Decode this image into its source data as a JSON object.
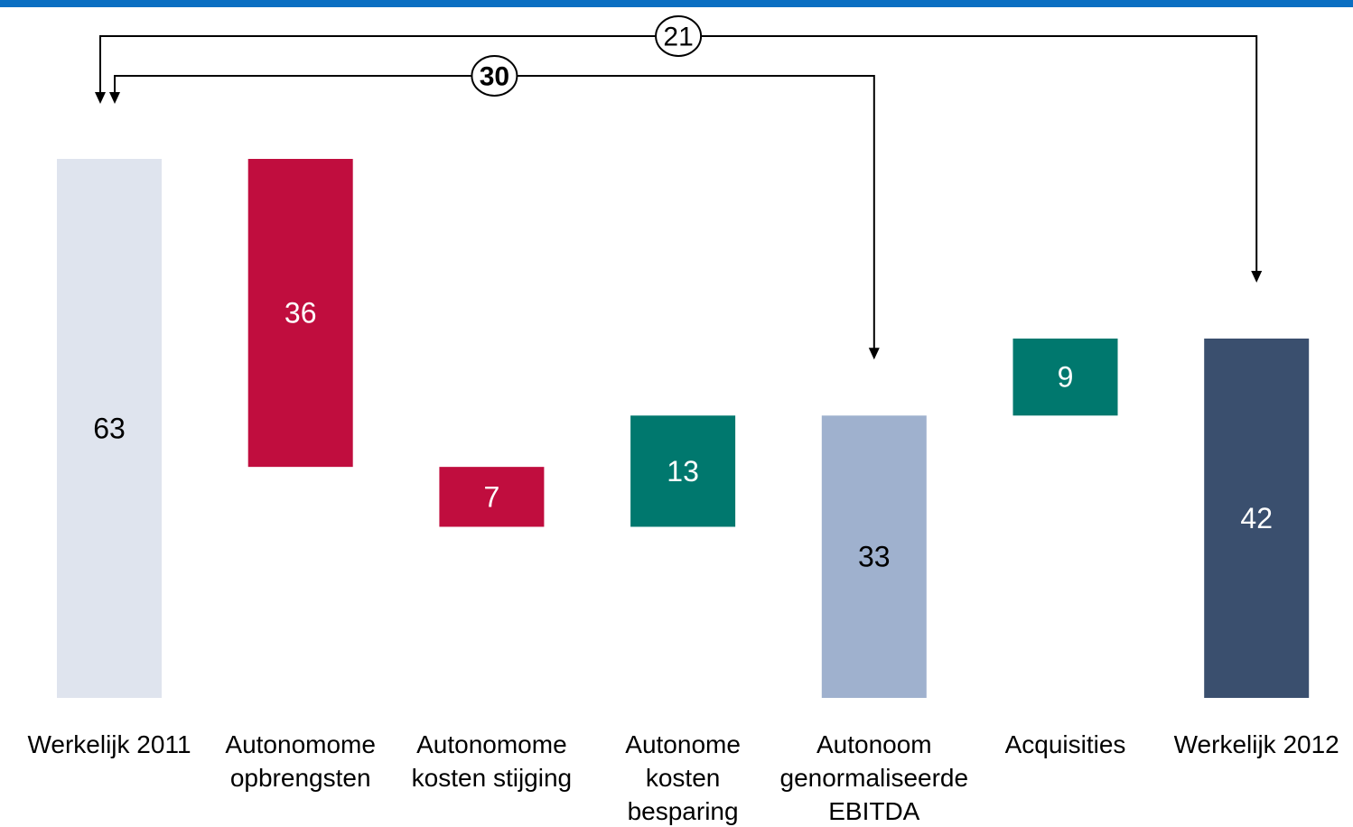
{
  "chart_data": {
    "type": "waterfall",
    "categories": [
      "Werkelijk 2011",
      "Autonomome\nopbrengsten",
      "Autonomome\nkosten stijging",
      "Autonome\nkosten\nbesparing",
      "Autonoom\ngenormaliseerde\nEBITDA",
      "Acquisities",
      "Werkelijk 2012"
    ],
    "values": [
      63,
      36,
      7,
      13,
      33,
      9,
      42
    ],
    "kinds": [
      "total",
      "decrease",
      "decrease",
      "increase",
      "total",
      "increase",
      "total"
    ],
    "colors": [
      "#dfe4ee",
      "#c00d3e",
      "#c00d3e",
      "#00786e",
      "#9fb1ce",
      "#00786e",
      "#3a4f6e"
    ],
    "annotations": [
      {
        "value": 21,
        "from": "Werkelijk 2011",
        "to": "Werkelijk 2012",
        "bold": false
      },
      {
        "value": 30,
        "from": "Werkelijk 2011",
        "to": "Autonoom\ngenormaliseerde\nEBITDA",
        "bold": true
      }
    ]
  }
}
